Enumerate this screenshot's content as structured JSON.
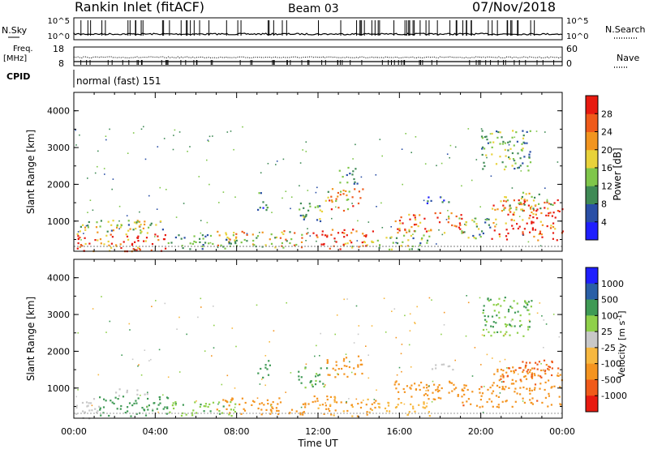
{
  "header": {
    "station": "Rankin Inlet (fitACF)",
    "beam": "Beam 03",
    "date": "07/Nov/2018"
  },
  "panels": {
    "nsky_label": "N.Sky",
    "nsearch_label": "N.Search",
    "nsky_ticks": [
      "10^5",
      "10^0"
    ],
    "nsearch_ticks": [
      "10^5",
      "10^0"
    ],
    "freq_label_1": "Freq.",
    "freq_label_2": "[MHz]",
    "freq_ticks": [
      "18",
      "8"
    ],
    "nave_label": "Nave",
    "nave_ticks": [
      "60",
      "0"
    ],
    "cpid_label": "CPID",
    "cpid_value": "normal (fast) 151"
  },
  "colors": {
    "power_scale": [
      "#1f1fff",
      "#2a4fa6",
      "#3f8a55",
      "#7fc64a",
      "#e8d23a",
      "#f2951f",
      "#ef5a1a",
      "#e81a10"
    ],
    "velocity_scale": [
      "#e81a10",
      "#f05a1a",
      "#f49420",
      "#f7b840",
      "#c8c8c8",
      "#8fd04a",
      "#3f9a55",
      "#2a5fa6",
      "#1f1fff"
    ]
  },
  "chart_data": [
    {
      "type": "heatmap",
      "title": "",
      "xlabel": "Time UT",
      "ylabel": "Slant Range [km]",
      "x_ticks": [
        "00:00",
        "04:00",
        "08:00",
        "12:00",
        "16:00",
        "20:00",
        "00:00"
      ],
      "y_ticks": [
        "1000",
        "2000",
        "3000",
        "4000"
      ],
      "ylim": [
        180,
        4500
      ],
      "colorbar_label": "Power [dB]",
      "colorbar_ticks": [
        "4",
        "8",
        "12",
        "16",
        "20",
        "24",
        "28"
      ],
      "colorbar_range": [
        0,
        32
      ],
      "regions": [
        {
          "t0": 0.0,
          "t1": 4.6,
          "r0": 200,
          "r1": 700,
          "v": 28
        },
        {
          "t0": 0.1,
          "t1": 4.4,
          "r0": 700,
          "r1": 1050,
          "v": 14
        },
        {
          "t0": 2.0,
          "t1": 3.6,
          "r0": 800,
          "r1": 1050,
          "v": 20
        },
        {
          "t0": 4.6,
          "t1": 8.0,
          "r0": 250,
          "r1": 650,
          "v": 10
        },
        {
          "t0": 7.0,
          "t1": 11.5,
          "r0": 300,
          "r1": 750,
          "v": 18
        },
        {
          "t0": 9.0,
          "t1": 9.6,
          "r0": 1300,
          "r1": 1800,
          "v": 8
        },
        {
          "t0": 11.0,
          "t1": 12.4,
          "r0": 1000,
          "r1": 1600,
          "v": 12
        },
        {
          "t0": 11.7,
          "t1": 14.8,
          "r0": 250,
          "r1": 800,
          "v": 26
        },
        {
          "t0": 12.4,
          "t1": 14.2,
          "r0": 1300,
          "r1": 1900,
          "v": 20
        },
        {
          "t0": 13.0,
          "t1": 14.0,
          "r0": 2000,
          "r1": 2500,
          "v": 10
        },
        {
          "t0": 14.8,
          "t1": 17.5,
          "r0": 250,
          "r1": 650,
          "v": 14
        },
        {
          "t0": 15.7,
          "t1": 19.2,
          "r0": 700,
          "r1": 1250,
          "v": 24
        },
        {
          "t0": 17.2,
          "t1": 18.6,
          "r0": 1500,
          "r1": 1700,
          "v": 6
        },
        {
          "t0": 19.0,
          "t1": 20.5,
          "r0": 500,
          "r1": 1100,
          "v": 12
        },
        {
          "t0": 20.5,
          "t1": 24.0,
          "r0": 500,
          "r1": 1600,
          "v": 28
        },
        {
          "t0": 21.0,
          "t1": 23.5,
          "r0": 1300,
          "r1": 1800,
          "v": 18
        },
        {
          "t0": 20.0,
          "t1": 22.5,
          "r0": 2400,
          "r1": 3500,
          "v": 12
        }
      ]
    },
    {
      "type": "heatmap",
      "title": "",
      "xlabel": "Time UT",
      "ylabel": "Slant Range [km]",
      "x_ticks": [
        "00:00",
        "04:00",
        "08:00",
        "12:00",
        "16:00",
        "20:00",
        "00:00"
      ],
      "y_ticks": [
        "1000",
        "2000",
        "3000",
        "4000"
      ],
      "ylim": [
        180,
        4500
      ],
      "colorbar_label": "Velocity [m s^-1]",
      "colorbar_ticks": [
        "1000",
        "500",
        "100",
        "25",
        "-25",
        "-100",
        "-500",
        "-1000"
      ],
      "regions": [
        {
          "t0": 0.0,
          "t1": 1.2,
          "r0": 200,
          "r1": 800,
          "v": 0
        },
        {
          "t0": 1.2,
          "t1": 4.6,
          "r0": 250,
          "r1": 800,
          "v": 150
        },
        {
          "t0": 2.0,
          "t1": 3.6,
          "r0": 800,
          "r1": 1000,
          "v": 0
        },
        {
          "t0": 4.6,
          "t1": 8.0,
          "r0": 250,
          "r1": 650,
          "v": 80
        },
        {
          "t0": 7.0,
          "t1": 11.5,
          "r0": 300,
          "r1": 750,
          "v": -150
        },
        {
          "t0": 9.0,
          "t1": 9.6,
          "r0": 1300,
          "r1": 1800,
          "v": 300
        },
        {
          "t0": 11.0,
          "t1": 12.4,
          "r0": 1000,
          "r1": 1600,
          "v": 120
        },
        {
          "t0": 11.7,
          "t1": 14.8,
          "r0": 250,
          "r1": 800,
          "v": -120
        },
        {
          "t0": 12.4,
          "t1": 14.2,
          "r0": 1300,
          "r1": 1900,
          "v": -200
        },
        {
          "t0": 14.8,
          "t1": 17.5,
          "r0": 250,
          "r1": 650,
          "v": -60
        },
        {
          "t0": 15.7,
          "t1": 19.2,
          "r0": 700,
          "r1": 1250,
          "v": -300
        },
        {
          "t0": 17.2,
          "t1": 18.6,
          "r0": 1500,
          "r1": 1700,
          "v": 0
        },
        {
          "t0": 19.0,
          "t1": 20.5,
          "r0": 500,
          "r1": 1100,
          "v": -400
        },
        {
          "t0": 20.5,
          "t1": 24.0,
          "r0": 500,
          "r1": 1600,
          "v": -400
        },
        {
          "t0": 21.0,
          "t1": 23.5,
          "r0": 1300,
          "r1": 1800,
          "v": -600
        },
        {
          "t0": 20.0,
          "t1": 22.5,
          "r0": 2400,
          "r1": 3500,
          "v": 100
        }
      ]
    }
  ]
}
